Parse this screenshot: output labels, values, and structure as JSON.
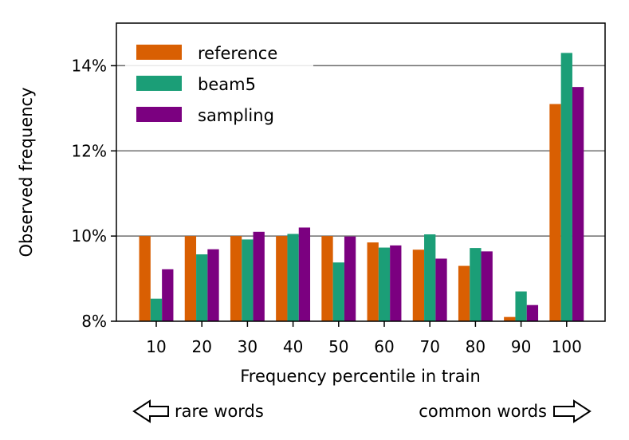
{
  "chart_data": {
    "type": "bar",
    "title": "",
    "xlabel": "Frequency percentile in train",
    "ylabel": "Observed frequency",
    "categories": [
      "10",
      "20",
      "30",
      "40",
      "50",
      "60",
      "70",
      "80",
      "90",
      "100"
    ],
    "series": [
      {
        "name": "reference",
        "color": "#d95f02",
        "values": [
          10.0,
          10.0,
          10.0,
          10.0,
          10.0,
          9.85,
          9.68,
          9.3,
          8.1,
          13.1
        ]
      },
      {
        "name": "beam5",
        "color": "#1b9e77",
        "values": [
          8.53,
          9.57,
          9.92,
          10.05,
          9.38,
          9.73,
          10.04,
          9.72,
          8.7,
          14.3
        ]
      },
      {
        "name": "sampling",
        "color": "#7b0080",
        "values": [
          9.22,
          9.69,
          10.1,
          10.2,
          9.99,
          9.78,
          9.47,
          9.64,
          8.38,
          13.5
        ]
      }
    ],
    "ylim": [
      8,
      15
    ],
    "yticks": [
      8,
      10,
      12,
      14
    ],
    "ytick_labels": [
      "8%",
      "10%",
      "12%",
      "14%"
    ],
    "grid": "horizontal",
    "legend_position": "top-left",
    "bottom_hints": {
      "left": "rare words",
      "right": "common words"
    }
  }
}
